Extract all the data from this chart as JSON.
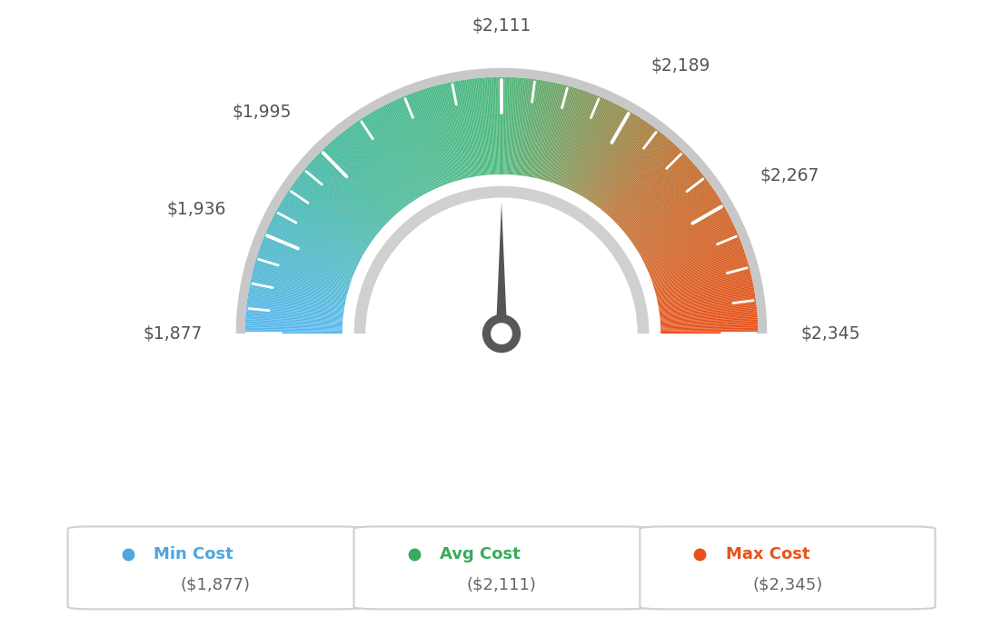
{
  "min_val": 1877,
  "avg_val": 2111,
  "max_val": 2345,
  "tick_labels": [
    "$1,877",
    "$1,936",
    "$1,995",
    "$2,111",
    "$2,189",
    "$2,267",
    "$2,345"
  ],
  "tick_values": [
    1877,
    1936,
    1995,
    2111,
    2189,
    2267,
    2345
  ],
  "legend_min_label": "Min Cost",
  "legend_avg_label": "Avg Cost",
  "legend_max_label": "Max Cost",
  "legend_min_value": "($1,877)",
  "legend_avg_value": "($2,111)",
  "legend_max_value": "($2,345)",
  "color_min_dot": "#4da6e0",
  "color_avg_dot": "#3aaa5c",
  "color_max_dot": "#e8521a",
  "color_min_text": "#4da6e0",
  "color_avg_text": "#3aaa5c",
  "color_max_text": "#e8521a",
  "background": "#ffffff",
  "gradient_colors": [
    "#5ab4e8",
    "#45b89a",
    "#4caf7d",
    "#a0a040",
    "#e8521a"
  ],
  "gradient_stops": [
    0.0,
    0.25,
    0.5,
    0.75,
    1.0
  ],
  "outer_r": 1.0,
  "inner_r": 0.62,
  "border_color": "#d0d0d0",
  "inner_bezel_color": "#d8d8d8",
  "needle_color": "#555555",
  "needle_circle_color": "#555555"
}
